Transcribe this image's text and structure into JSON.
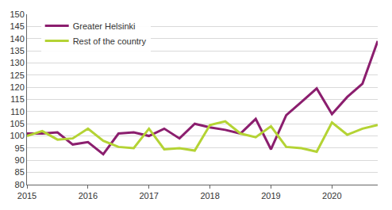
{
  "chart_data": {
    "type": "line",
    "categories": [
      "2015",
      null,
      null,
      null,
      "2016",
      null,
      null,
      null,
      "2017",
      null,
      null,
      null,
      "2018",
      null,
      null,
      null,
      "2019",
      null,
      null,
      null,
      "2020",
      null,
      null,
      null
    ],
    "series": [
      {
        "name": "Greater Helsinki",
        "color": "#8b1e6e",
        "values": [
          101,
          101,
          101.5,
          96.5,
          97.5,
          92.5,
          101,
          101.5,
          100,
          103,
          99,
          105,
          103.5,
          102.5,
          101,
          107,
          94.5,
          108.5,
          114,
          119.5,
          109,
          116,
          121.5,
          139
        ]
      },
      {
        "name": "Rest of the country",
        "color": "#b4d334",
        "values": [
          100,
          102,
          98.5,
          99,
          103,
          98,
          95.5,
          95,
          103,
          94.5,
          95,
          94,
          104.5,
          106,
          101,
          99.5,
          104,
          95.5,
          95,
          93.5,
          105.5,
          100.5,
          103,
          104.5
        ]
      }
    ],
    "ylim": [
      80,
      150
    ],
    "yticks": [
      80,
      85,
      90,
      95,
      100,
      105,
      110,
      115,
      120,
      125,
      130,
      135,
      140,
      145,
      150
    ],
    "grid": true,
    "legend": "upper left"
  }
}
